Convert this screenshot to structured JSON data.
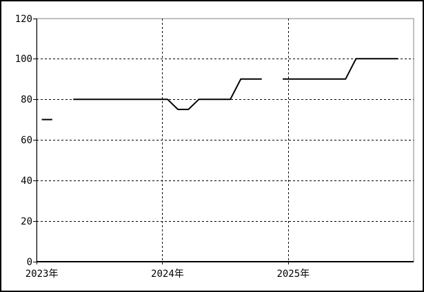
{
  "figure": {
    "background_color": "#ffffff",
    "outer_border_color": "#000000"
  },
  "chart_data": {
    "type": "line",
    "title": "",
    "xlabel": "",
    "ylabel": "",
    "x_axis": {
      "unit": "month",
      "start": "2023-01",
      "end": "2025-12",
      "tick_labels": [
        {
          "label": "2023年",
          "month_index": 0
        },
        {
          "label": "2024年",
          "month_index": 12
        },
        {
          "label": "2025年",
          "month_index": 24
        }
      ],
      "gridline_boundary_indices": [
        12,
        24
      ],
      "tick_boundary_indices": [
        0,
        12,
        24
      ]
    },
    "y_axis": {
      "min": 0,
      "max": 120,
      "step": 20,
      "tick_labels": [
        "0",
        "20",
        "40",
        "60",
        "80",
        "100",
        "120"
      ]
    },
    "grid": {
      "style": "dashed",
      "color": "#000000",
      "dash": "3,3"
    },
    "plot_border_color": "#808080",
    "axis_color": "#000000",
    "legend": null,
    "series": [
      {
        "name": "series-1",
        "color": "#000000",
        "width": 2,
        "values": [
          70,
          70,
          null,
          80,
          80,
          80,
          80,
          80,
          80,
          80,
          80,
          80,
          80,
          75,
          75,
          80,
          80,
          80,
          80,
          90,
          90,
          90,
          null,
          90,
          90,
          90,
          90,
          90,
          90,
          90,
          100,
          100,
          100,
          100,
          100,
          null
        ]
      }
    ]
  }
}
